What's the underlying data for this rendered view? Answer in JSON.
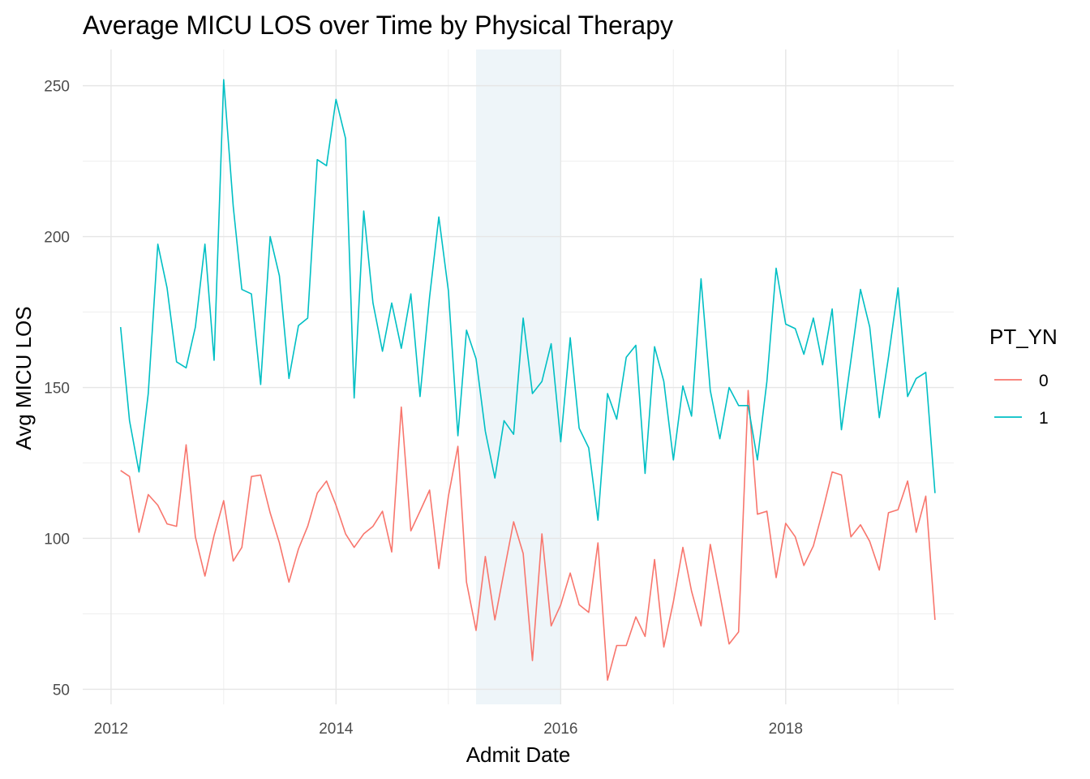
{
  "chart_data": {
    "type": "line",
    "title": "Average MICU LOS over Time by Physical Therapy",
    "xlabel": "Admit Date",
    "ylabel": "Avg MICU LOS",
    "xlim": [
      "2011-10-01",
      "2019-07-01"
    ],
    "ylim": [
      45,
      262
    ],
    "x_ticks": [
      "2012",
      "2014",
      "2016",
      "2018"
    ],
    "y_ticks": [
      "50",
      "100",
      "150",
      "200",
      "250"
    ],
    "grid": true,
    "shaded_region": {
      "start": "2015-04-01",
      "end": "2016-01-01",
      "color": "#eef5f9"
    },
    "legend": {
      "title": "PT_YN",
      "position": "right"
    },
    "series": [
      {
        "name": "0",
        "color": "#f8766d",
        "points": [
          [
            "2012-02-01",
            122.5
          ],
          [
            "2012-03-01",
            120.5
          ],
          [
            "2012-04-01",
            102.0
          ],
          [
            "2012-05-01",
            114.5
          ],
          [
            "2012-06-01",
            111.0
          ],
          [
            "2012-07-01",
            104.8
          ],
          [
            "2012-08-01",
            104.0
          ],
          [
            "2012-09-01",
            131.0
          ],
          [
            "2012-10-01",
            100.5
          ],
          [
            "2012-11-01",
            87.5
          ],
          [
            "2012-12-01",
            101.0
          ],
          [
            "2013-01-01",
            112.5
          ],
          [
            "2013-02-01",
            92.5
          ],
          [
            "2013-03-01",
            97.0
          ],
          [
            "2013-04-01",
            120.5
          ],
          [
            "2013-05-01",
            121.0
          ],
          [
            "2013-06-01",
            108.5
          ],
          [
            "2013-07-01",
            98.5
          ],
          [
            "2013-08-01",
            85.5
          ],
          [
            "2013-09-01",
            96.5
          ],
          [
            "2013-10-01",
            104.0
          ],
          [
            "2013-11-01",
            115.0
          ],
          [
            "2013-12-01",
            119.0
          ],
          [
            "2014-01-01",
            111.0
          ],
          [
            "2014-02-01",
            101.5
          ],
          [
            "2014-03-01",
            97.0
          ],
          [
            "2014-04-01",
            101.5
          ],
          [
            "2014-05-01",
            104.0
          ],
          [
            "2014-06-01",
            109.0
          ],
          [
            "2014-07-01",
            95.5
          ],
          [
            "2014-08-01",
            143.5
          ],
          [
            "2014-09-01",
            102.5
          ],
          [
            "2014-10-01",
            109.0
          ],
          [
            "2014-11-01",
            116.0
          ],
          [
            "2014-12-01",
            90.0
          ],
          [
            "2015-01-01",
            114.0
          ],
          [
            "2015-02-01",
            130.5
          ],
          [
            "2015-03-01",
            85.5
          ],
          [
            "2015-04-01",
            69.5
          ],
          [
            "2015-05-01",
            94.0
          ],
          [
            "2015-06-01",
            73.0
          ],
          [
            "2015-07-01",
            89.0
          ],
          [
            "2015-08-01",
            105.5
          ],
          [
            "2015-09-01",
            95.0
          ],
          [
            "2015-10-01",
            59.5
          ],
          [
            "2015-11-01",
            101.5
          ],
          [
            "2015-12-01",
            71.0
          ],
          [
            "2016-01-01",
            78.0
          ],
          [
            "2016-02-01",
            88.5
          ],
          [
            "2016-03-01",
            78.0
          ],
          [
            "2016-04-01",
            75.5
          ],
          [
            "2016-05-01",
            98.5
          ],
          [
            "2016-06-01",
            53.0
          ],
          [
            "2016-07-01",
            64.5
          ],
          [
            "2016-08-01",
            64.5
          ],
          [
            "2016-09-01",
            74.0
          ],
          [
            "2016-10-01",
            67.5
          ],
          [
            "2016-11-01",
            93.0
          ],
          [
            "2016-12-01",
            64.0
          ],
          [
            "2017-01-01",
            79.0
          ],
          [
            "2017-02-01",
            97.0
          ],
          [
            "2017-03-01",
            82.5
          ],
          [
            "2017-04-01",
            71.0
          ],
          [
            "2017-05-01",
            98.0
          ],
          [
            "2017-06-01",
            81.5
          ],
          [
            "2017-07-01",
            65.0
          ],
          [
            "2017-08-01",
            69.0
          ],
          [
            "2017-09-01",
            149.0
          ],
          [
            "2017-10-01",
            108.0
          ],
          [
            "2017-11-01",
            109.0
          ],
          [
            "2017-12-01",
            87.0
          ],
          [
            "2018-01-01",
            105.0
          ],
          [
            "2018-02-01",
            100.5
          ],
          [
            "2018-03-01",
            91.0
          ],
          [
            "2018-04-01",
            97.5
          ],
          [
            "2018-05-01",
            109.0
          ],
          [
            "2018-06-01",
            122.0
          ],
          [
            "2018-07-01",
            121.0
          ],
          [
            "2018-08-01",
            100.5
          ],
          [
            "2018-09-01",
            104.5
          ],
          [
            "2018-10-01",
            99.0
          ],
          [
            "2018-11-01",
            89.5
          ],
          [
            "2018-12-01",
            108.5
          ],
          [
            "2019-01-01",
            109.5
          ],
          [
            "2019-02-01",
            119.0
          ],
          [
            "2019-03-01",
            102.0
          ],
          [
            "2019-04-01",
            114.0
          ],
          [
            "2019-05-01",
            73.0
          ]
        ]
      },
      {
        "name": "1",
        "color": "#00bfc4",
        "points": [
          [
            "2012-02-01",
            170.0
          ],
          [
            "2012-03-01",
            139.0
          ],
          [
            "2012-04-01",
            122.0
          ],
          [
            "2012-05-01",
            148.0
          ],
          [
            "2012-06-01",
            197.5
          ],
          [
            "2012-07-01",
            183.0
          ],
          [
            "2012-08-01",
            158.5
          ],
          [
            "2012-09-01",
            156.5
          ],
          [
            "2012-10-01",
            170.0
          ],
          [
            "2012-11-01",
            197.5
          ],
          [
            "2012-12-01",
            159.0
          ],
          [
            "2013-01-01",
            252.0
          ],
          [
            "2013-02-01",
            210.0
          ],
          [
            "2013-03-01",
            182.5
          ],
          [
            "2013-04-01",
            181.0
          ],
          [
            "2013-05-01",
            151.0
          ],
          [
            "2013-06-01",
            200.0
          ],
          [
            "2013-07-01",
            187.0
          ],
          [
            "2013-08-01",
            153.0
          ],
          [
            "2013-09-01",
            170.5
          ],
          [
            "2013-10-01",
            173.0
          ],
          [
            "2013-11-01",
            225.5
          ],
          [
            "2013-12-01",
            223.5
          ],
          [
            "2014-01-01",
            245.5
          ],
          [
            "2014-02-01",
            232.5
          ],
          [
            "2014-03-01",
            146.5
          ],
          [
            "2014-04-01",
            208.5
          ],
          [
            "2014-05-01",
            178.0
          ],
          [
            "2014-06-01",
            162.0
          ],
          [
            "2014-07-01",
            178.0
          ],
          [
            "2014-08-01",
            163.0
          ],
          [
            "2014-09-01",
            181.0
          ],
          [
            "2014-10-01",
            147.0
          ],
          [
            "2014-11-01",
            180.0
          ],
          [
            "2014-12-01",
            206.5
          ],
          [
            "2015-01-01",
            182.0
          ],
          [
            "2015-02-01",
            134.0
          ],
          [
            "2015-03-01",
            169.0
          ],
          [
            "2015-04-01",
            159.5
          ],
          [
            "2015-05-01",
            135.5
          ],
          [
            "2015-06-01",
            120.0
          ],
          [
            "2015-07-01",
            139.0
          ],
          [
            "2015-08-01",
            134.5
          ],
          [
            "2015-09-01",
            173.0
          ],
          [
            "2015-10-01",
            148.0
          ],
          [
            "2015-11-01",
            152.0
          ],
          [
            "2015-12-01",
            164.5
          ],
          [
            "2016-01-01",
            132.0
          ],
          [
            "2016-02-01",
            166.5
          ],
          [
            "2016-03-01",
            136.5
          ],
          [
            "2016-04-01",
            130.0
          ],
          [
            "2016-05-01",
            106.0
          ],
          [
            "2016-06-01",
            148.0
          ],
          [
            "2016-07-01",
            139.5
          ],
          [
            "2016-08-01",
            160.0
          ],
          [
            "2016-09-01",
            164.0
          ],
          [
            "2016-10-01",
            121.5
          ],
          [
            "2016-11-01",
            163.5
          ],
          [
            "2016-12-01",
            152.0
          ],
          [
            "2017-01-01",
            126.0
          ],
          [
            "2017-02-01",
            150.5
          ],
          [
            "2017-03-01",
            140.5
          ],
          [
            "2017-04-01",
            186.0
          ],
          [
            "2017-05-01",
            149.0
          ],
          [
            "2017-06-01",
            133.0
          ],
          [
            "2017-07-01",
            150.0
          ],
          [
            "2017-08-01",
            144.0
          ],
          [
            "2017-09-01",
            144.0
          ],
          [
            "2017-10-01",
            126.0
          ],
          [
            "2017-11-01",
            152.0
          ],
          [
            "2017-12-01",
            189.5
          ],
          [
            "2018-01-01",
            171.0
          ],
          [
            "2018-02-01",
            169.5
          ],
          [
            "2018-03-01",
            161.0
          ],
          [
            "2018-04-01",
            173.0
          ],
          [
            "2018-05-01",
            157.5
          ],
          [
            "2018-06-01",
            176.0
          ],
          [
            "2018-07-01",
            136.0
          ],
          [
            "2018-08-01",
            159.0
          ],
          [
            "2018-09-01",
            182.5
          ],
          [
            "2018-10-01",
            170.0
          ],
          [
            "2018-11-01",
            140.0
          ],
          [
            "2018-12-01",
            160.0
          ],
          [
            "2019-01-01",
            183.0
          ],
          [
            "2019-02-01",
            147.0
          ],
          [
            "2019-03-01",
            153.0
          ],
          [
            "2019-04-01",
            155.0
          ],
          [
            "2019-05-01",
            115.0
          ]
        ]
      }
    ]
  }
}
